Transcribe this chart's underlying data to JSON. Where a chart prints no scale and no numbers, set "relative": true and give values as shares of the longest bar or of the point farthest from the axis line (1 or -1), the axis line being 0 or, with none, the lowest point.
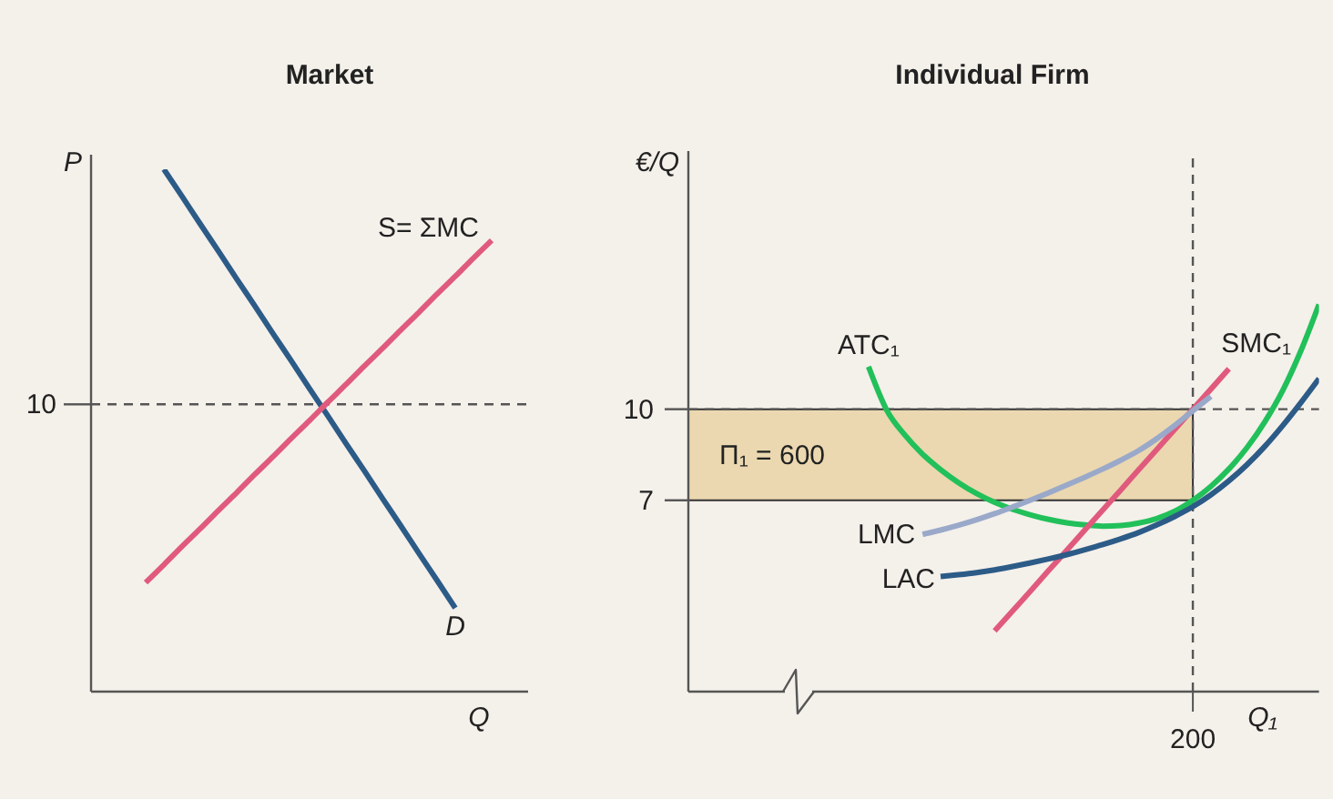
{
  "chart_data": [
    {
      "type": "line",
      "title": "Market",
      "xlabel": "Q",
      "ylabel": "P",
      "relative": true,
      "categories": [
        null,
        null,
        null,
        null,
        null,
        null,
        null,
        null,
        null,
        null,
        null,
        null,
        null,
        null,
        null,
        null,
        null,
        null,
        null,
        null,
        null,
        null,
        null,
        null,
        null
      ],
      "series": [
        {
          "name": "D",
          "color": "#2c5b87",
          "values": [
            null,
            null,
            null,
            null,
            1,
            0.948,
            0.895,
            0.843,
            0.79,
            0.738,
            0.685,
            0.633,
            0.58,
            0.528,
            0.475,
            0.423,
            0.37,
            0.318,
            0.265,
            0.213,
            0.16,
            null,
            null,
            null,
            null
          ]
        },
        {
          "name": "S= ΣMC",
          "color": "#e05a7d",
          "values": [
            null,
            null,
            null,
            0.209,
            0.243,
            0.278,
            0.312,
            0.347,
            0.381,
            0.416,
            0.45,
            0.485,
            0.519,
            0.554,
            0.588,
            0.623,
            0.657,
            0.692,
            0.726,
            0.761,
            0.795,
            0.83,
            0.864,
            null,
            null
          ]
        }
      ],
      "ref_lines": [
        {
          "axis": "y",
          "value": 0.55,
          "line_style": "dashed"
        }
      ],
      "annotations": [
        "10"
      ]
    },
    {
      "type": "line",
      "title": "Individual Firm",
      "xlabel": "Q₁",
      "ylabel": "€/Q",
      "categories": [
        null,
        null,
        null,
        null,
        null,
        null,
        null,
        null,
        null,
        null,
        null,
        null,
        null,
        null,
        null,
        null,
        null,
        null,
        null,
        null,
        null,
        null,
        null,
        null,
        null,
        null,
        null,
        null,
        "200",
        null,
        null,
        null,
        null,
        null,
        null,
        null
      ],
      "ylim": [
        0.7,
        18.5
      ],
      "yticks": [
        7,
        10
      ],
      "series": [
        {
          "name": "ATC₁",
          "color": "#22c05a",
          "values": [
            null,
            null,
            null,
            null,
            null,
            null,
            null,
            null,
            null,
            null,
            11.4,
            9.98,
            9.16,
            8.52,
            8.01,
            7.58,
            7.22,
            6.93,
            6.7,
            6.52,
            6.37,
            6.26,
            6.19,
            6.15,
            6.17,
            6.25,
            6.4,
            6.64,
            7.0,
            7.46,
            8.03,
            8.73,
            9.59,
            10.63,
            11.93,
            13.45
          ]
        },
        {
          "name": "SMC₁",
          "color": "#e05a7d",
          "values": [
            null,
            null,
            null,
            null,
            null,
            null,
            null,
            null,
            null,
            null,
            null,
            null,
            null,
            null,
            null,
            null,
            null,
            2.7,
            3.36,
            4.02,
            4.69,
            5.35,
            6.02,
            6.68,
            7.34,
            8.01,
            8.67,
            9.34,
            10.0,
            10.66,
            11.33,
            null,
            null,
            null,
            null,
            null
          ]
        },
        {
          "name": "LMC",
          "color": "#9aa9c9",
          "values": [
            null,
            null,
            null,
            null,
            null,
            null,
            null,
            null,
            null,
            null,
            null,
            null,
            null,
            5.88,
            6.02,
            6.18,
            6.36,
            6.56,
            6.78,
            7.01,
            7.25,
            7.5,
            7.76,
            8.03,
            8.32,
            8.64,
            9.03,
            9.47,
            9.95,
            10.42,
            null,
            null,
            null,
            null,
            null,
            null
          ]
        },
        {
          "name": "LAC",
          "color": "#2c5b87",
          "values": [
            null,
            null,
            null,
            null,
            null,
            null,
            null,
            null,
            null,
            null,
            null,
            null,
            null,
            null,
            4.49,
            4.55,
            4.62,
            4.71,
            4.82,
            4.94,
            5.07,
            5.21,
            5.37,
            5.54,
            5.73,
            5.94,
            6.19,
            6.47,
            6.79,
            7.18,
            7.64,
            8.17,
            8.78,
            9.47,
            10.22,
            11.01
          ]
        }
      ],
      "ref_lines": [
        {
          "axis": "y",
          "value": 10,
          "line_style": "dashed"
        },
        {
          "axis": "x",
          "value": "200",
          "line_style": "dashed"
        }
      ],
      "bands": [
        {
          "axis": "y",
          "from": 7,
          "to": 10,
          "label": "Π₁ = 600",
          "color": "#ebd8b0"
        }
      ]
    }
  ]
}
